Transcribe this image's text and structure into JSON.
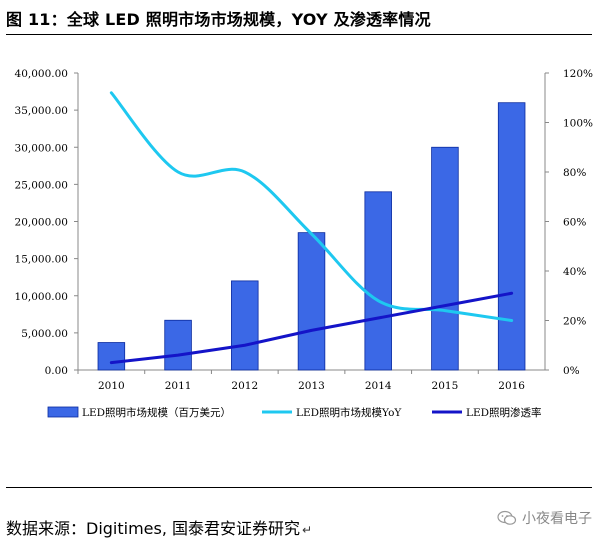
{
  "title": "图 11：全球 LED 照明市场市场规模，YOY 及渗透率情况",
  "source": "数据来源：Digitimes, 国泰君安证券研究",
  "return_mark": "↵",
  "watermark": "小夜看电子",
  "chart_data": {
    "type": "bar",
    "categories": [
      "2010",
      "2011",
      "2012",
      "2013",
      "2014",
      "2015",
      "2016"
    ],
    "series": [
      {
        "name": "LED照明市场规模（百万美元）",
        "type": "bar",
        "axis": "left",
        "values": [
          3700,
          6700,
          12000,
          18500,
          24000,
          30000,
          36000
        ],
        "color": "#3b68e6"
      },
      {
        "name": "LED照明市场规模YoY",
        "type": "line",
        "axis": "right",
        "values": [
          112,
          80,
          80,
          55,
          28,
          24,
          20
        ],
        "color": "#1ec8f0"
      },
      {
        "name": "LED照明渗透率",
        "type": "line",
        "axis": "right",
        "values": [
          3,
          6,
          10,
          16,
          21,
          26,
          31
        ],
        "color": "#1414c8"
      }
    ],
    "y_left": {
      "min": 0,
      "max": 40000,
      "step": 5000,
      "ticks": [
        "0.00",
        "5,000.00",
        "10,000.00",
        "15,000.00",
        "20,000.00",
        "25,000.00",
        "30,000.00",
        "35,000.00",
        "40,000.00"
      ]
    },
    "y_right": {
      "min": 0,
      "max": 120,
      "step": 20,
      "ticks": [
        "0%",
        "20%",
        "40%",
        "60%",
        "80%",
        "100%",
        "120%"
      ]
    },
    "legend": [
      "LED照明市场规模（百万美元）",
      "LED照明市场规模YoY",
      "LED照明渗透率"
    ],
    "legend_position": "bottom"
  }
}
